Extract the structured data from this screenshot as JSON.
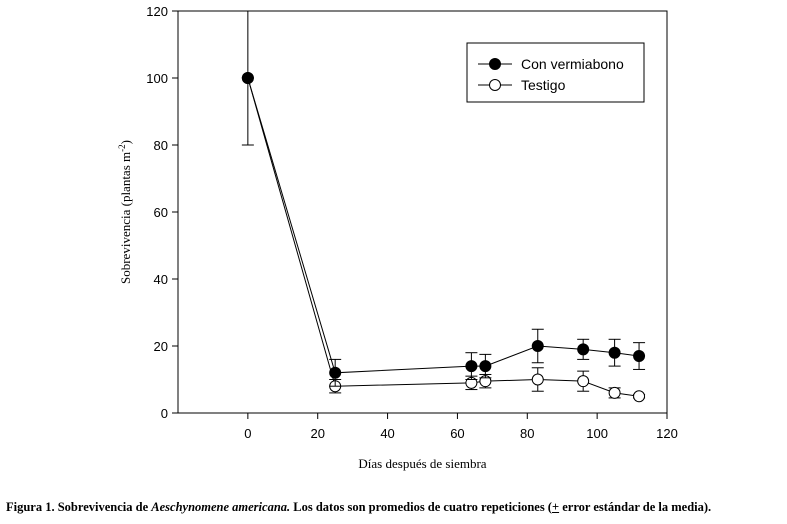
{
  "chart_data": {
    "type": "line",
    "xlabel": "Días después de siembra",
    "ylabel": "Sobrevivencia (plantas m",
    "ylabel_sup": "-2",
    "ylabel_close": ")",
    "xlim": [
      -20,
      120
    ],
    "ylim": [
      0,
      120
    ],
    "xticks": [
      0,
      20,
      40,
      60,
      80,
      100,
      120
    ],
    "yticks": [
      0,
      20,
      40,
      60,
      80,
      100,
      120
    ],
    "legend_position": "top-right",
    "series": [
      {
        "name": "Con vermiabono",
        "marker": "filled-circle",
        "x": [
          0,
          25,
          64,
          68,
          83,
          96,
          105,
          112
        ],
        "y": [
          100,
          12,
          14,
          14,
          20,
          19,
          18,
          17
        ],
        "err": [
          20,
          4,
          4,
          3.5,
          5,
          3,
          4,
          4
        ]
      },
      {
        "name": "Testigo",
        "marker": "open-circle",
        "x": [
          0,
          25,
          64,
          68,
          83,
          96,
          105,
          112
        ],
        "y": [
          100,
          8,
          9,
          9.5,
          10,
          9.5,
          6,
          5
        ],
        "err": [
          0,
          2,
          2,
          2,
          3.5,
          3,
          1.5,
          0.5
        ]
      }
    ]
  },
  "caption": {
    "label": "Figura 1.",
    "text_before": " Sobrevivencia  de ",
    "species": "Aeschynomene americana.",
    "text_after": " Los datos son promedios de cuatro repeticiones (",
    "pm": "+",
    "text_end": " error estándar de la media)."
  }
}
